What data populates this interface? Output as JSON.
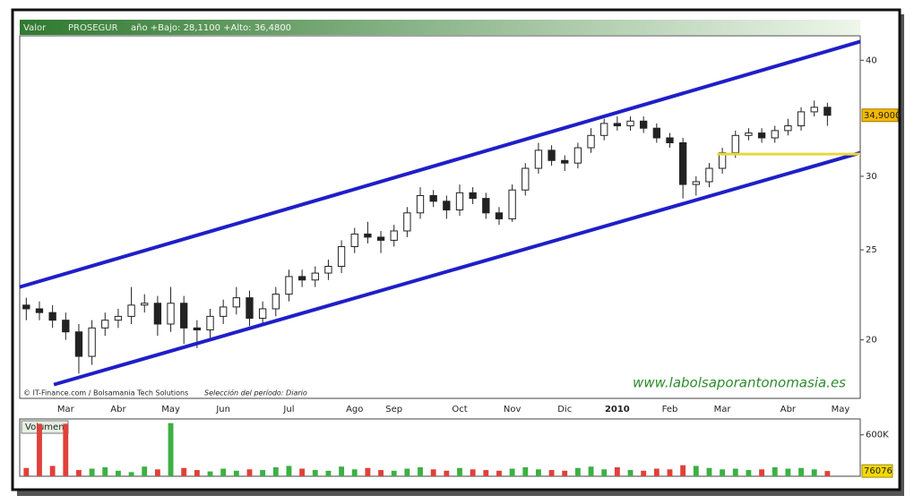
{
  "header": {
    "label": "Valor",
    "symbol": "PROSEGUR",
    "range": "año +Bajo: 28,1100 +Alto: 36,4800"
  },
  "footer": {
    "credit": "© IT-Finance.com / Bolsamania Tech Solutions",
    "period": "Selección del período: Diario",
    "watermark": "www.labolsaporantonomasia.es"
  },
  "chart_data": [
    {
      "type": "candlestick",
      "log_scale": true,
      "color": "#222222",
      "up_fill": "#ffffff",
      "down_fill": "#222222",
      "categories": [
        null,
        null,
        null,
        "Mar",
        null,
        null,
        null,
        "Abr",
        null,
        null,
        null,
        "May",
        null,
        null,
        null,
        "Jun",
        null,
        null,
        null,
        null,
        "Jul",
        null,
        null,
        null,
        null,
        "Ago",
        null,
        null,
        "Sep",
        null,
        null,
        null,
        null,
        "Oct",
        null,
        null,
        null,
        "Nov",
        null,
        null,
        null,
        "Dic",
        null,
        null,
        null,
        "2010",
        null,
        null,
        null,
        "Feb",
        null,
        null,
        null,
        "Mar",
        null,
        null,
        null,
        null,
        "Abr",
        null,
        null,
        null,
        "May",
        null
      ],
      "open": [
        21.8,
        21.6,
        21.4,
        21.0,
        20.4,
        19.2,
        20.6,
        21.0,
        21.2,
        21.8,
        21.9,
        20.8,
        21.9,
        20.6,
        20.5,
        21.2,
        21.7,
        22.2,
        21.1,
        21.6,
        22.4,
        23.4,
        23.2,
        23.6,
        24.0,
        25.2,
        26.0,
        25.8,
        25.6,
        26.2,
        27.4,
        28.6,
        28.2,
        27.6,
        28.8,
        28.4,
        27.4,
        27.0,
        29.0,
        30.6,
        32.0,
        31.2,
        31.0,
        32.2,
        33.2,
        34.2,
        34.0,
        34.4,
        33.8,
        33.0,
        32.6,
        29.4,
        29.6,
        30.6,
        31.8,
        33.2,
        33.4,
        33.0,
        33.6,
        34.0,
        35.2,
        35.6,
        null,
        null
      ],
      "high": [
        22.2,
        22.0,
        21.8,
        21.4,
        20.8,
        21.0,
        21.4,
        21.6,
        22.8,
        22.4,
        22.3,
        22.8,
        22.3,
        21.0,
        21.6,
        22.1,
        22.8,
        22.6,
        22.0,
        22.8,
        23.8,
        23.8,
        24.0,
        24.4,
        25.6,
        26.4,
        26.8,
        26.2,
        26.6,
        27.8,
        29.2,
        29.0,
        28.6,
        29.4,
        29.2,
        28.8,
        27.8,
        29.4,
        31.0,
        32.6,
        32.4,
        31.6,
        32.6,
        33.8,
        34.6,
        34.8,
        34.8,
        34.8,
        34.2,
        33.4,
        33.0,
        30.0,
        31.0,
        32.2,
        33.6,
        33.8,
        33.8,
        34.0,
        34.6,
        35.6,
        36.2,
        36.0,
        null,
        null
      ],
      "low": [
        21.0,
        21.0,
        20.6,
        20.0,
        18.4,
        18.8,
        20.2,
        20.6,
        20.8,
        21.4,
        20.2,
        20.4,
        19.8,
        19.6,
        20.1,
        20.8,
        21.3,
        20.7,
        20.7,
        21.2,
        22.0,
        22.8,
        22.8,
        23.2,
        23.6,
        24.8,
        25.4,
        24.8,
        25.2,
        25.8,
        27.0,
        27.8,
        27.0,
        27.2,
        28.0,
        27.0,
        26.6,
        26.8,
        28.6,
        30.2,
        30.8,
        30.4,
        30.6,
        31.8,
        32.8,
        33.6,
        33.6,
        33.4,
        32.6,
        32.2,
        28.4,
        28.6,
        29.2,
        30.2,
        31.4,
        32.8,
        32.6,
        32.6,
        33.2,
        33.6,
        34.8,
        34.0,
        null,
        null
      ],
      "close": [
        21.6,
        21.4,
        21.0,
        20.4,
        19.2,
        20.6,
        21.0,
        21.2,
        21.8,
        21.9,
        20.8,
        21.9,
        20.6,
        20.5,
        21.2,
        21.7,
        22.2,
        21.1,
        21.6,
        22.4,
        23.4,
        23.2,
        23.6,
        24.0,
        25.2,
        26.0,
        25.8,
        25.6,
        26.2,
        27.4,
        28.6,
        28.2,
        27.6,
        28.8,
        28.4,
        27.4,
        27.0,
        29.0,
        30.6,
        32.0,
        31.2,
        31.0,
        32.2,
        33.2,
        34.2,
        34.0,
        34.4,
        33.8,
        33.0,
        32.6,
        29.4,
        29.6,
        30.6,
        31.8,
        33.2,
        33.4,
        33.0,
        33.6,
        34.0,
        35.2,
        35.6,
        34.9,
        null,
        null
      ],
      "last_label": {
        "value": 34.9,
        "label": "34,9000"
      },
      "lines": [
        {
          "color": "#1f1fc8",
          "x": [
            -0.5,
            63.5
          ],
          "y": [
            22.8,
            41.9
          ]
        },
        {
          "color": "#1f1fc8",
          "x": [
            2.1,
            63.5
          ],
          "y": [
            17.9,
            31.8
          ]
        },
        {
          "color": "#e8d840",
          "x": [
            52.6,
            63.5
          ],
          "y": [
            31.7,
            31.7
          ]
        }
      ],
      "ylim": [
        17.3,
        42.5
      ],
      "yticks": [
        20,
        25,
        30,
        40
      ]
    },
    {
      "type": "bar",
      "title": "Volumen",
      "up_color": "#3cb043",
      "down_color": "#e0403a",
      "values": [
        120000,
        760000,
        150000,
        760000,
        90000,
        110000,
        130000,
        80000,
        60000,
        140000,
        100000,
        770000,
        120000,
        90000,
        70000,
        110000,
        80000,
        100000,
        90000,
        130000,
        150000,
        110000,
        90000,
        80000,
        140000,
        100000,
        120000,
        90000,
        80000,
        110000,
        130000,
        100000,
        80000,
        120000,
        100000,
        90000,
        80000,
        110000,
        130000,
        100000,
        90000,
        80000,
        120000,
        140000,
        100000,
        130000,
        90000,
        80000,
        110000,
        100000,
        160000,
        150000,
        120000,
        100000,
        110000,
        90000,
        100000,
        130000,
        110000,
        120000,
        100000,
        76076,
        null,
        null
      ],
      "ylim": [
        0,
        830000
      ],
      "yticks": [
        {
          "value": 600000,
          "label": "600K"
        }
      ]
    }
  ]
}
